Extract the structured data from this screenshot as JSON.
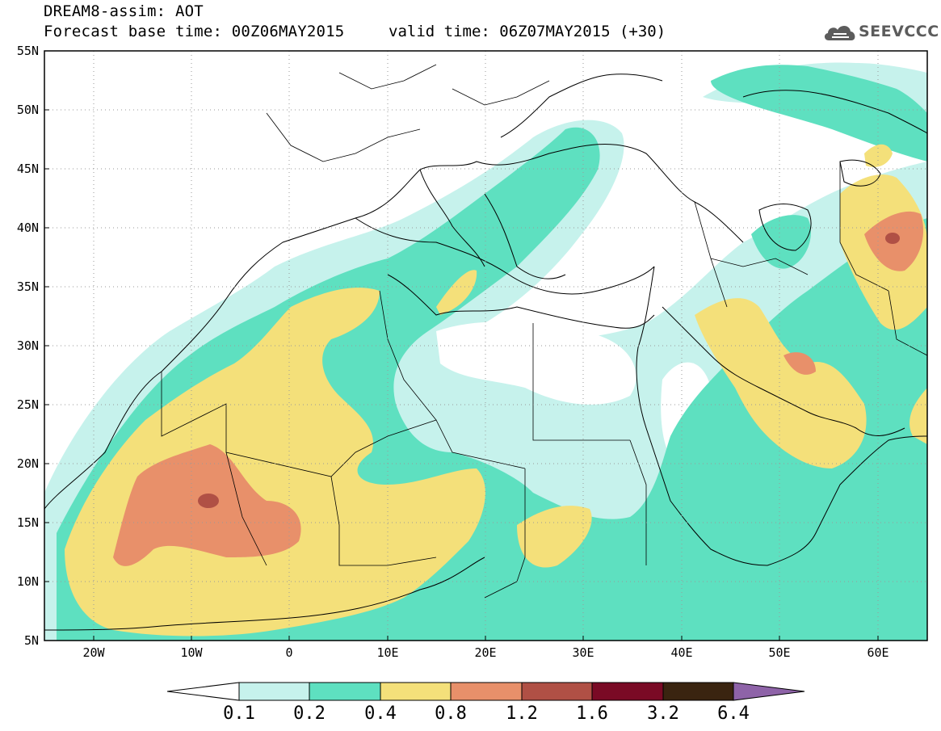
{
  "title": {
    "line1": "DREAM8-assim: AOT",
    "base_time": "Forecast base time: 00Z06MAY2015",
    "valid_time": "valid time: 06Z07MAY2015 (+30)"
  },
  "logo": {
    "text": "SEEVCCC",
    "icon": "cloud-icon"
  },
  "map": {
    "lon_range": [
      -25,
      65
    ],
    "lat_range": [
      5,
      55
    ],
    "grid": "dotted",
    "lat_ticks": [
      "55N",
      "50N",
      "45N",
      "40N",
      "35N",
      "30N",
      "25N",
      "20N",
      "15N",
      "10N",
      "5N"
    ],
    "lon_ticks": [
      "20W",
      "10W",
      "0",
      "10E",
      "20E",
      "30E",
      "40E",
      "50E",
      "60E"
    ]
  },
  "legend": {
    "levels": [
      "0.1",
      "0.2",
      "0.4",
      "0.8",
      "1.2",
      "1.6",
      "3.2",
      "6.4"
    ],
    "colors": [
      "#ffffff",
      "#c6f2ec",
      "#5ee0c0",
      "#f4e07a",
      "#e8906a",
      "#b05045",
      "#7a0a25",
      "#3a2410",
      "#8e63a8"
    ]
  }
}
